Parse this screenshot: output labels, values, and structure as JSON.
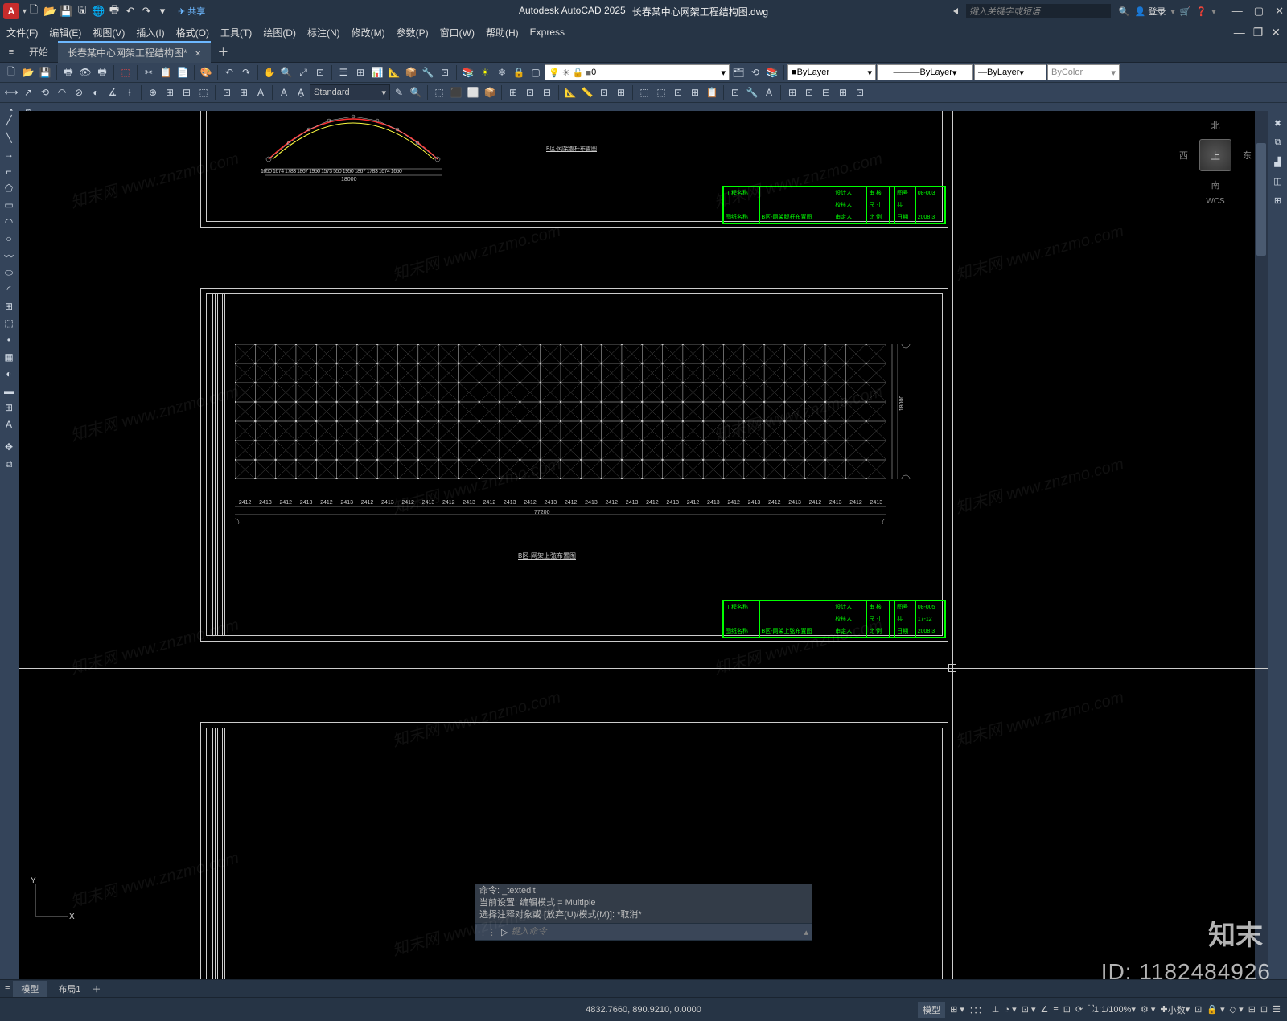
{
  "app": {
    "name": "Autodesk AutoCAD 2025",
    "file": "长春某中心网架工程结构图.dwg",
    "logo": "A"
  },
  "titlebar": {
    "share": "共享",
    "search_placeholder": "键入关键字或短语",
    "login": "登录",
    "qat_icons": [
      "📄",
      "📁",
      "💾",
      "🖶",
      "↶",
      "↷",
      "▾"
    ]
  },
  "menu": [
    "文件(F)",
    "编辑(E)",
    "视图(V)",
    "插入(I)",
    "格式(O)",
    "工具(T)",
    "绘图(D)",
    "标注(N)",
    "修改(M)",
    "参数(P)",
    "窗口(W)",
    "帮助(H)",
    "Express"
  ],
  "tabs": {
    "start": "开始",
    "active": "长春某中心网架工程结构图*"
  },
  "ribbon": {
    "layer_value": "0",
    "text_style": "Standard",
    "bylayer1": "ByLayer",
    "bylayer2": "ByLayer",
    "bylayer3": "ByLayer",
    "bycolor": "ByColor"
  },
  "viewcube": {
    "n": "北",
    "s": "南",
    "w": "西",
    "e": "东",
    "top": "上",
    "wcs": "WCS"
  },
  "drawing1": {
    "section_label": "B区-网架腹杆布置图",
    "arch_dims": [
      "1650",
      "1674",
      "1783",
      "1867",
      "1950",
      "1573",
      "550",
      "1950",
      "1867",
      "1783",
      "1674",
      "1650"
    ],
    "arch_total": "18000",
    "titleblock": {
      "rows": [
        [
          "工程名称",
          "",
          "设计人",
          "",
          "审 核",
          "",
          "图号",
          "08-003"
        ],
        [
          "",
          "",
          "校核人",
          "",
          "尺 寸",
          "",
          "共",
          "  "
        ],
        [
          "图纸名称",
          "B区-网架腹杆布置图",
          "审定人",
          "",
          "比 例",
          "",
          "日期",
          "2008.3"
        ]
      ]
    }
  },
  "drawing2": {
    "plan_label": "B区-网架上弦布置图",
    "dim_value": "2412",
    "dim_alt": "2413",
    "total": "77200",
    "side_total": "18000",
    "cols": 32,
    "rows": 7,
    "titleblock": {
      "rows": [
        [
          "工程名称",
          "",
          "设计人",
          "",
          "审 核",
          "",
          "图号",
          "08-005"
        ],
        [
          "",
          "",
          "校核人",
          "",
          "尺 寸",
          "",
          "共",
          "17-12"
        ],
        [
          "图纸名称",
          "B区-网架上弦布置图",
          "审定人",
          "",
          "比 例",
          "",
          "日期",
          "2008.3"
        ]
      ]
    }
  },
  "cmd": {
    "hist1": "命令: _textedit",
    "hist2": "当前设置: 编辑模式 = Multiple",
    "hist3": "选择注释对象或 [放弃(U)/模式(M)]: *取消*",
    "placeholder": "键入命令"
  },
  "bottomtabs": {
    "model": "模型",
    "layout1": "布局1"
  },
  "statusbar": {
    "coords": "4832.7660, 890.9210, 0.0000",
    "model_btn": "模型",
    "scale": "1:1/100%",
    "decimal": "小数"
  },
  "ucs": {
    "x": "X",
    "y": "Y"
  },
  "watermark": {
    "text": "知末网 www.znzmo.com",
    "id": "ID: 1182484926",
    "logo": "知末"
  },
  "colors": {
    "canvas": "#000000",
    "frame": "#cccccc",
    "green": "#00ff00",
    "arch_outer": "#ff3030",
    "arch_inner": "#ffff40"
  }
}
